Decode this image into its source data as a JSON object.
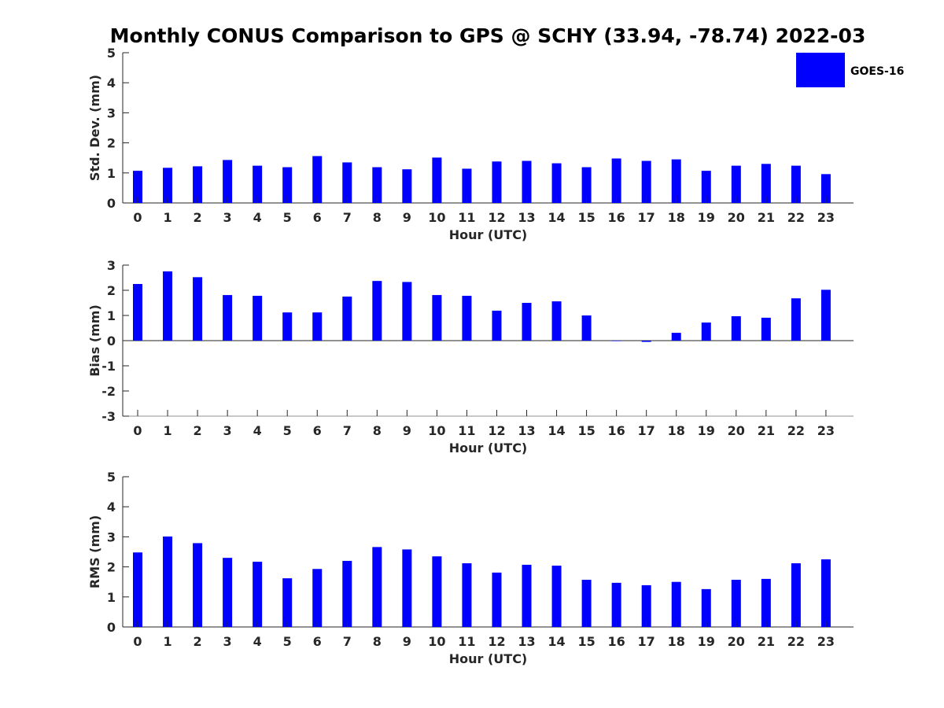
{
  "title": "Monthly CONUS Comparison to GPS @ SCHY (33.94, -78.74) 2022-03",
  "legend": {
    "label": "GOES-16",
    "color": "#0000ff",
    "placement": "top-right"
  },
  "chart_data": [
    {
      "type": "bar",
      "name": "stddev",
      "xlabel": "Hour (UTC)",
      "ylabel": "Std. Dev. (mm)",
      "ylim": [
        0,
        5
      ],
      "yticks": [
        0,
        1,
        2,
        3,
        4,
        5
      ],
      "categories": [
        "0",
        "1",
        "2",
        "3",
        "4",
        "5",
        "6",
        "7",
        "8",
        "9",
        "10",
        "11",
        "12",
        "13",
        "14",
        "15",
        "16",
        "17",
        "18",
        "19",
        "20",
        "21",
        "22",
        "23"
      ],
      "series": [
        {
          "name": "GOES-16",
          "color": "#0000ff",
          "values": [
            1.07,
            1.17,
            1.22,
            1.43,
            1.24,
            1.19,
            1.56,
            1.35,
            1.19,
            1.12,
            1.51,
            1.14,
            1.38,
            1.4,
            1.32,
            1.19,
            1.48,
            1.4,
            1.45,
            1.07,
            1.24,
            1.3,
            1.24,
            0.96
          ]
        }
      ]
    },
    {
      "type": "bar",
      "name": "bias",
      "xlabel": "Hour (UTC)",
      "ylabel": "Bias (mm)",
      "ylim": [
        -3,
        3
      ],
      "yticks": [
        -3,
        -2,
        -1,
        0,
        1,
        2,
        3
      ],
      "categories": [
        "0",
        "1",
        "2",
        "3",
        "4",
        "5",
        "6",
        "7",
        "8",
        "9",
        "10",
        "11",
        "12",
        "13",
        "14",
        "15",
        "16",
        "17",
        "18",
        "19",
        "20",
        "21",
        "22",
        "23"
      ],
      "series": [
        {
          "name": "GOES-16",
          "color": "#0000ff",
          "values": [
            2.25,
            2.75,
            2.52,
            1.81,
            1.78,
            1.12,
            1.12,
            1.75,
            2.37,
            2.33,
            1.81,
            1.78,
            1.19,
            1.5,
            1.56,
            1.0,
            0.0,
            -0.05,
            0.31,
            0.72,
            0.97,
            0.91,
            1.68,
            2.02
          ]
        }
      ]
    },
    {
      "type": "bar",
      "name": "rms",
      "xlabel": "Hour (UTC)",
      "ylabel": "RMS (mm)",
      "ylim": [
        0,
        5
      ],
      "yticks": [
        0,
        1,
        2,
        3,
        4,
        5
      ],
      "categories": [
        "0",
        "1",
        "2",
        "3",
        "4",
        "5",
        "6",
        "7",
        "8",
        "9",
        "10",
        "11",
        "12",
        "13",
        "14",
        "15",
        "16",
        "17",
        "18",
        "19",
        "20",
        "21",
        "22",
        "23"
      ],
      "series": [
        {
          "name": "GOES-16",
          "color": "#0000ff",
          "values": [
            2.48,
            3.01,
            2.79,
            2.3,
            2.17,
            1.62,
            1.93,
            2.2,
            2.66,
            2.58,
            2.35,
            2.12,
            1.81,
            2.07,
            2.04,
            1.57,
            1.47,
            1.39,
            1.5,
            1.26,
            1.57,
            1.6,
            2.12,
            2.25
          ]
        }
      ]
    }
  ]
}
